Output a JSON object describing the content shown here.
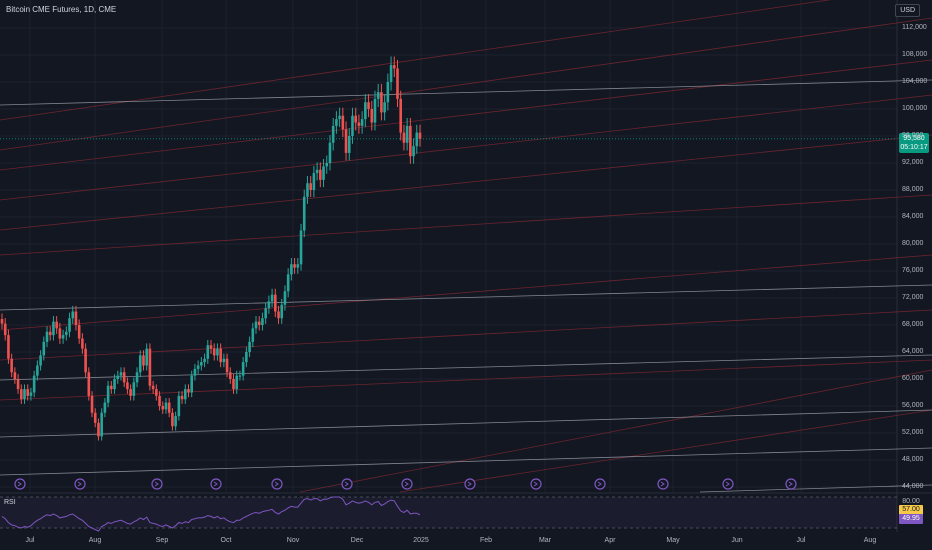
{
  "header": {
    "title": "Bitcoin CME Futures, 1D, CME",
    "currency": "USD"
  },
  "price_tag": {
    "price": "95,580",
    "countdown": "05:10:17"
  },
  "rsi": {
    "label": "RSI",
    "upper": "80.00",
    "value_yellow": "57.00",
    "value_purple": "49.95",
    "levels": [
      80,
      40
    ]
  },
  "colors": {
    "background": "#131722",
    "up": "#26a69a",
    "down": "#ef5350",
    "rsi": "#7e57c2",
    "price_tag": "#089981"
  },
  "chart_data": {
    "type": "candlestick",
    "title": "Bitcoin CME Futures, 1D, CME",
    "y_axis_ticks": [
      "112,000",
      "108,000",
      "104,000",
      "100,000",
      "96,000",
      "92,000",
      "88,000",
      "84,000",
      "80,000",
      "76,000",
      "72,000",
      "68,000",
      "64,000",
      "60,000",
      "56,000",
      "52,000",
      "48,000",
      "44,000"
    ],
    "x_axis_ticks": [
      "Jul",
      "Aug",
      "Sep",
      "Oct",
      "Nov",
      "Dec",
      "2025",
      "Feb",
      "Mar",
      "Apr",
      "May",
      "Jun",
      "Jul",
      "Aug"
    ],
    "ylim": [
      43000,
      115000
    ],
    "last_price": 95580,
    "closes": [
      68200,
      66500,
      63000,
      61000,
      60000,
      58500,
      57000,
      58500,
      57500,
      58000,
      60500,
      62000,
      63500,
      65500,
      67000,
      66500,
      68500,
      67500,
      66000,
      66500,
      67000,
      69000,
      70000,
      68000,
      66000,
      64500,
      61000,
      57500,
      55000,
      53500,
      51500,
      55000,
      56500,
      59000,
      58500,
      60000,
      60500,
      61000,
      59500,
      58500,
      57500,
      59500,
      61000,
      63500,
      62000,
      64500,
      59000,
      58500,
      57500,
      56000,
      55500,
      56500,
      55000,
      53000,
      54500,
      57500,
      57000,
      58500,
      58000,
      60500,
      61500,
      62000,
      62500,
      63000,
      65000,
      64500,
      63500,
      64500,
      62500,
      63000,
      61000,
      60000,
      58500,
      60500,
      60500,
      62500,
      64000,
      65500,
      67500,
      68500,
      68000,
      69000,
      70500,
      71500,
      72500,
      70000,
      69000,
      71000,
      73000,
      75500,
      77000,
      76500,
      77000,
      82000,
      87000,
      89000,
      88000,
      90500,
      91000,
      89500,
      91500,
      92000,
      95000,
      97500,
      98500,
      99000,
      97000,
      93500,
      96000,
      99000,
      98000,
      97500,
      98500,
      101000,
      100000,
      98000,
      101500,
      102500,
      99500,
      101000,
      104000,
      106500,
      106000,
      101500,
      96500,
      95000,
      97500,
      93000,
      94500,
      96500,
      95580
    ],
    "rsi_values": [
      55,
      52,
      47,
      44,
      43,
      41,
      40,
      42,
      41,
      43,
      47,
      50,
      52,
      55,
      57,
      56,
      58,
      56,
      53,
      54,
      55,
      57,
      58,
      55,
      52,
      50,
      46,
      42,
      40,
      38,
      36,
      42,
      44,
      47,
      46,
      48,
      49,
      50,
      48,
      46,
      45,
      48,
      50,
      53,
      51,
      54,
      47,
      46,
      45,
      43,
      42,
      44,
      42,
      40,
      43,
      47,
      46,
      48,
      47,
      51,
      52,
      53,
      53,
      54,
      56,
      55,
      53,
      55,
      52,
      53,
      50,
      48,
      47,
      50,
      50,
      53,
      55,
      57,
      59,
      60,
      59,
      61,
      62,
      63,
      64,
      60,
      58,
      61,
      63,
      66,
      68,
      67,
      67,
      72,
      77,
      78,
      76,
      78,
      78,
      75,
      77,
      77,
      79,
      80,
      80,
      80,
      77,
      70,
      72,
      75,
      73,
      72,
      73,
      75,
      73,
      70,
      73,
      74,
      69,
      71,
      74,
      76,
      75,
      68,
      62,
      60,
      63,
      58,
      59,
      59,
      57
    ]
  }
}
